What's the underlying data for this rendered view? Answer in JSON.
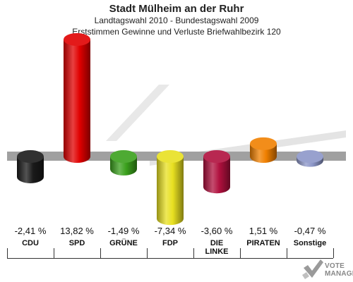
{
  "title": "Stadt Mülheim an der Ruhr",
  "subtitle1": "Landtagswahl 2010 - Bundestagswahl 2009",
  "subtitle2": "Erststimmen Gewinne und Verluste Briefwahlbezirk 120",
  "logo": {
    "line1": "VOTE",
    "line2": "MANAGER"
  },
  "chart_data": {
    "type": "bar",
    "title": "Stadt Mülheim an der Ruhr",
    "subtitle": "Erststimmen Gewinne und Verluste Briefwahlbezirk 120",
    "categories": [
      "CDU",
      "SPD",
      "GRÜNE",
      "FDP",
      "DIE LINKE",
      "PIRATEN",
      "Sonstige"
    ],
    "category_labels": [
      [
        "CDU"
      ],
      [
        "SPD"
      ],
      [
        "GRÜNE"
      ],
      [
        "FDP"
      ],
      [
        "DIE",
        "LINKE"
      ],
      [
        "PIRATEN"
      ],
      [
        "Sonstige"
      ]
    ],
    "values": [
      -2.41,
      13.82,
      -1.49,
      -7.34,
      -3.6,
      1.51,
      -0.47
    ],
    "value_labels": [
      "-2,41 %",
      "13,82 %",
      "-1,49 %",
      "-7,34 %",
      "-3,60 %",
      "1,51 %",
      "-0,47 %"
    ],
    "colors": [
      "#1a1a1a",
      "#e00000",
      "#3aa01c",
      "#e8e020",
      "#b0103e",
      "#f08000",
      "#8c96c8"
    ],
    "grid": false,
    "legend": "none"
  }
}
